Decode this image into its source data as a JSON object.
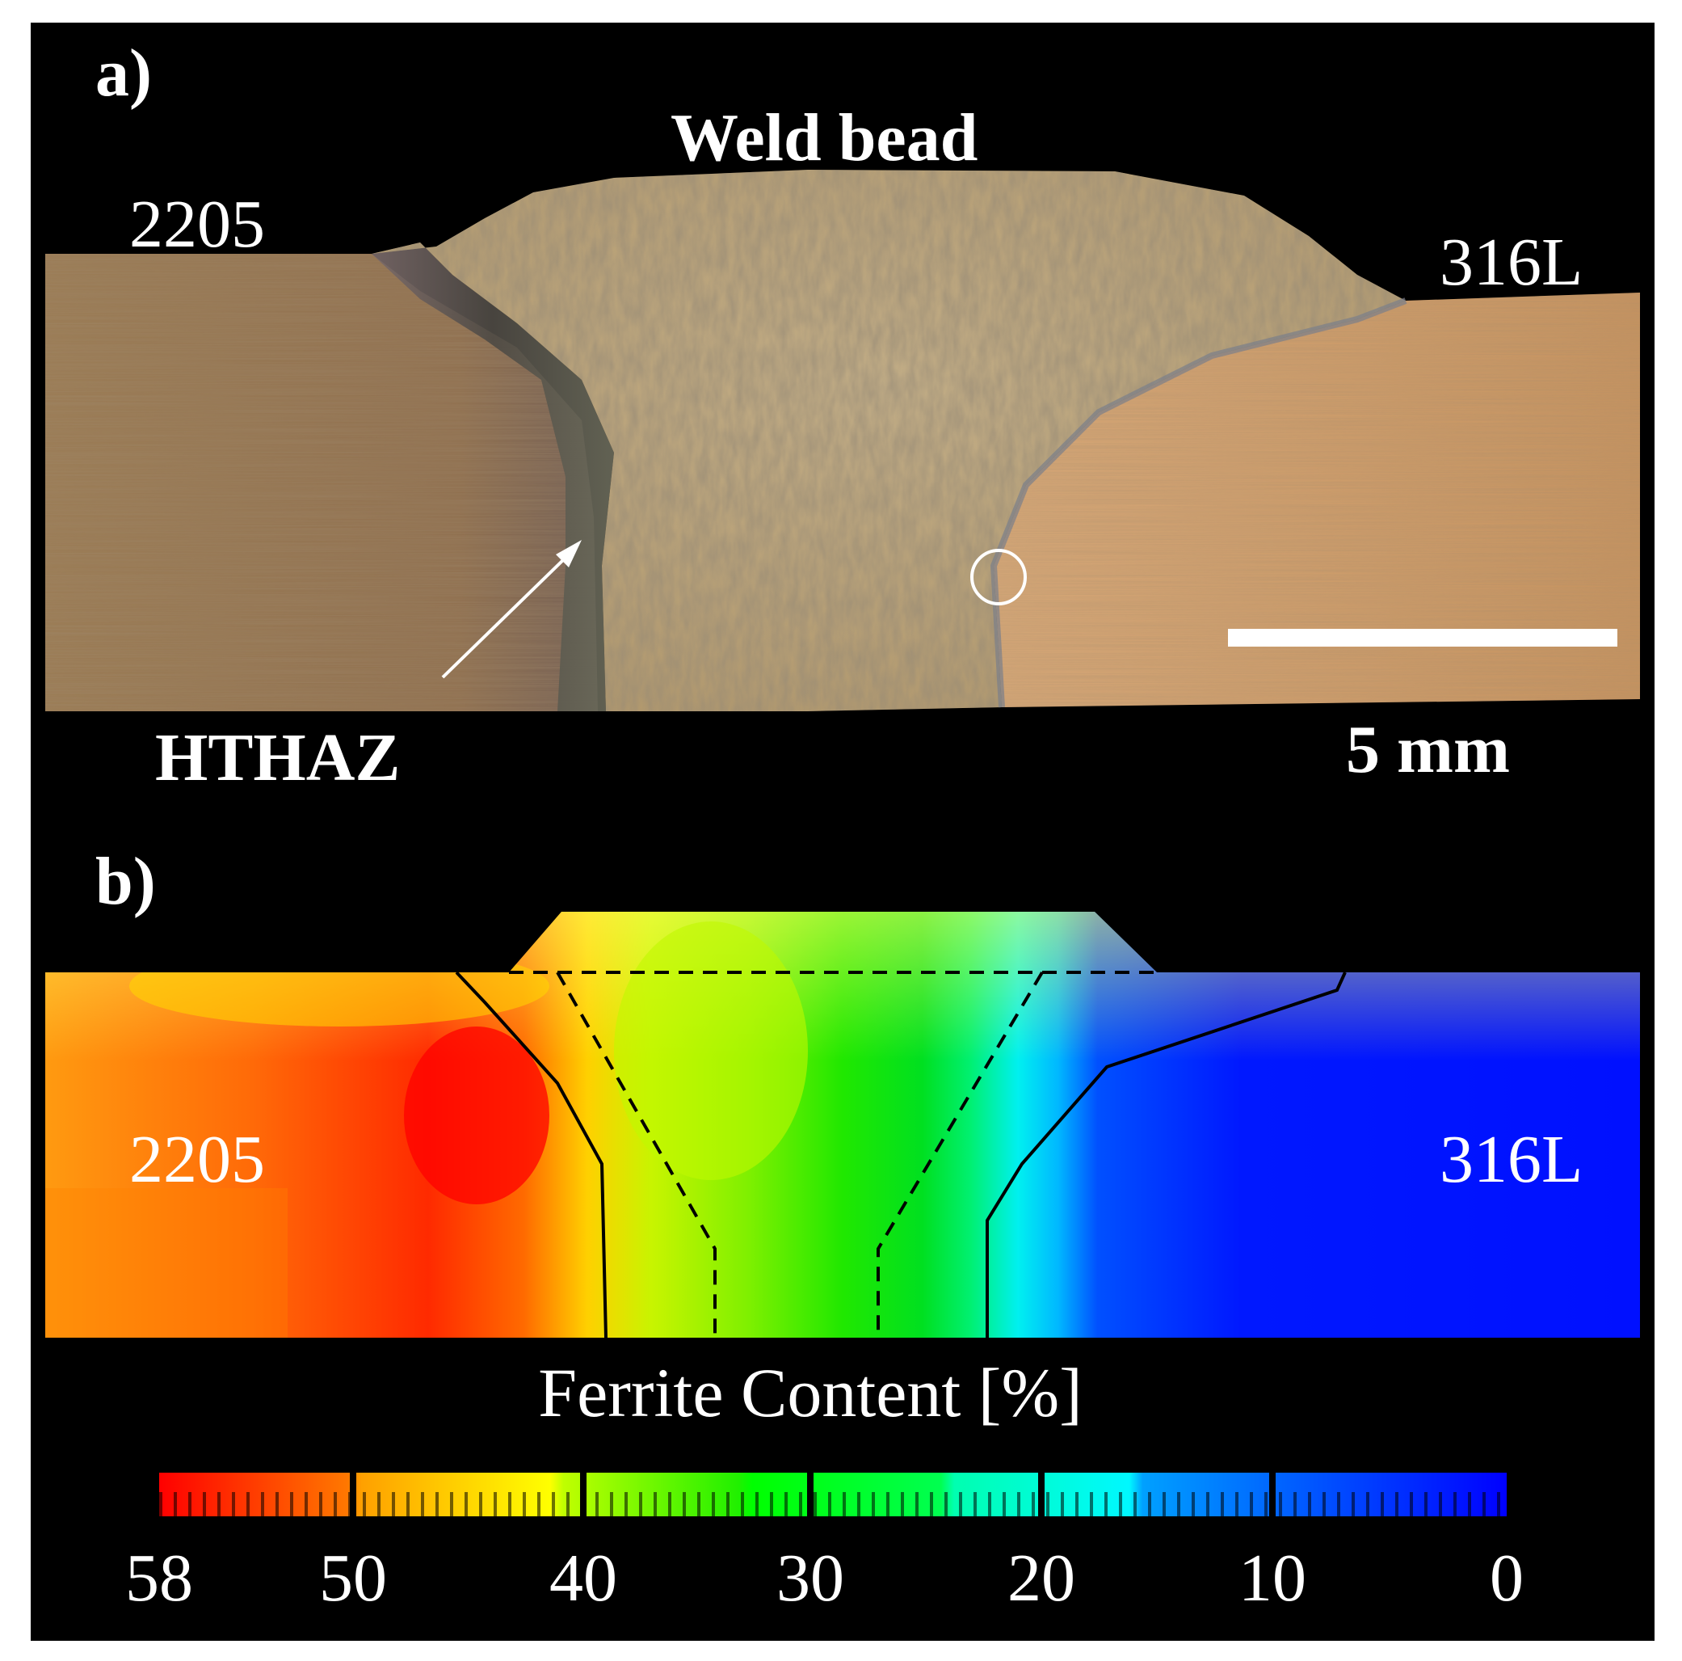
{
  "panel_a": {
    "label": "a)",
    "title": "Weld bead",
    "left_material": "2205",
    "right_material": "316L",
    "haz_label": "HTHAZ",
    "scalebar_label": "5 mm"
  },
  "panel_b": {
    "label": "b)",
    "left_material": "2205",
    "right_material": "316L",
    "colorbar": {
      "title": "Ferrite Content [%]",
      "ticks": [
        "58",
        "50",
        "40",
        "30",
        "20",
        "10",
        "0"
      ]
    }
  },
  "colors": {
    "background": "#000000",
    "max_ferrite": "#ff0000",
    "min_ferrite": "#0000ff"
  }
}
